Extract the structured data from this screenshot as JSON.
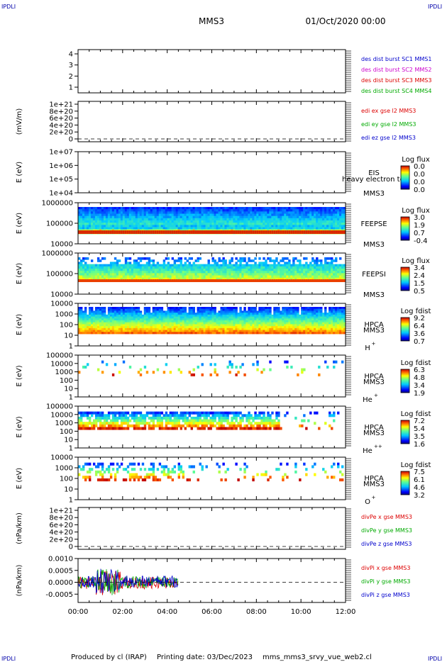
{
  "header": {
    "corner_left_top": "IPDLI",
    "corner_right_top": "IPDLI",
    "corner_left_bottom": "IPDLI",
    "corner_right_bottom": "IPDLI",
    "spacecraft": "MMS3",
    "datetime": "01/Oct/2020 00:00"
  },
  "footer": {
    "produced_by": "Produced by cl (IRAP)",
    "printing_date": "Printing date: 03/Dec/2023",
    "filename": "mms_mms3_srvy_vue_web2.cl"
  },
  "time_axis": {
    "ticks": [
      "00:00",
      "02:00",
      "04:00",
      "06:00",
      "08:00",
      "10:00",
      "12:00"
    ],
    "range_hours": [
      0,
      12
    ]
  },
  "chart_data": [
    {
      "id": "burst",
      "type": "line",
      "ylabel": "",
      "yticks": [
        "4",
        "3",
        "2",
        "1"
      ],
      "legend": [
        {
          "text": "des dist burst SC1 MMS1",
          "color": "#0000cc"
        },
        {
          "text": "des dist burst SC2 MMS2",
          "color": "#cc00cc"
        },
        {
          "text": "des dist burst SC3 MMS3",
          "color": "#dd0000"
        },
        {
          "text": "des dist burst SC4 MMS4",
          "color": "#00aa00"
        }
      ]
    },
    {
      "id": "edi",
      "type": "line",
      "ylabel": "(mV/m)",
      "yticks": [
        "1e+21",
        "8e+20",
        "6e+20",
        "4e+20",
        "2e+20",
        "0"
      ],
      "zero_line": true,
      "legend": [
        {
          "text": "edi ex gse l2 MMS3",
          "color": "#dd0000"
        },
        {
          "text": "edi ey gse l2 MMS3",
          "color": "#00aa00"
        },
        {
          "text": "edi ez gse l2 MMS3",
          "color": "#0000cc"
        }
      ]
    },
    {
      "id": "eis",
      "type": "heatmap",
      "ylabel": "E (eV)",
      "yticks": [
        "1e+07",
        "1e+06",
        "1e+05",
        "1e+04"
      ],
      "instrument": "EIS",
      "overlay_text": "heavy electron tc",
      "sc": "MMS3",
      "cbar_title": "Log flux",
      "cbar_ticks": [
        "0.0",
        "0.0",
        "0.0",
        "0.0"
      ]
    },
    {
      "id": "feepse",
      "type": "heatmap",
      "ylabel": "E (eV)",
      "yticks": [
        "1000000",
        "100000",
        "10000"
      ],
      "instrument": "FEEPSE",
      "sc": "MMS3",
      "cbar_title": "Log flux",
      "cbar_ticks": [
        "3.0",
        "1.9",
        "0.7",
        "-0.4"
      ]
    },
    {
      "id": "feepsi",
      "type": "heatmap",
      "ylabel": "E (eV)",
      "yticks": [
        "1000000",
        "100000",
        "10000"
      ],
      "instrument": "FEEPSI",
      "sc": "MMS3",
      "cbar_title": "Log flux",
      "cbar_ticks": [
        "3.4",
        "2.4",
        "1.5",
        "0.5"
      ]
    },
    {
      "id": "hpca_h",
      "type": "heatmap",
      "ylabel": "E (eV)",
      "yticks": [
        "10000",
        "1000",
        "100",
        "10",
        "1"
      ],
      "instrument": "HPCA",
      "sc": "MMS3",
      "species": "H",
      "species_sup": "+",
      "cbar_title": "Log fdist",
      "cbar_ticks": [
        "9.2",
        "6.4",
        "3.6",
        "0.7"
      ]
    },
    {
      "id": "hpca_he1",
      "type": "heatmap",
      "ylabel": "E (eV)",
      "yticks": [
        "100000",
        "10000",
        "1000",
        "100",
        "10",
        "1"
      ],
      "instrument": "HPCA",
      "sc": "MMS3",
      "species": "He",
      "species_sup": "+",
      "cbar_title": "Log fdist",
      "cbar_ticks": [
        "6.3",
        "4.8",
        "3.4",
        "1.9"
      ]
    },
    {
      "id": "hpca_he2",
      "type": "heatmap",
      "ylabel": "E (eV)",
      "yticks": [
        "100000",
        "10000",
        "1000",
        "100",
        "10",
        "1"
      ],
      "instrument": "HPCA",
      "sc": "MMS3",
      "species": "He",
      "species_sup": "++",
      "cbar_title": "Log fdist",
      "cbar_ticks": [
        "7.2",
        "5.4",
        "3.5",
        "1.6"
      ]
    },
    {
      "id": "hpca_o",
      "type": "heatmap",
      "ylabel": "E (eV)",
      "yticks": [
        "10000",
        "1000",
        "100",
        "10",
        "1"
      ],
      "instrument": "HPCA",
      "sc": "MMS3",
      "species": "O",
      "species_sup": "+",
      "cbar_title": "Log fdist",
      "cbar_ticks": [
        "7.5",
        "6.1",
        "4.6",
        "3.2"
      ]
    },
    {
      "id": "divpe",
      "type": "line",
      "ylabel": "(nPa/km)",
      "yticks": [
        "1e+21",
        "8e+20",
        "6e+20",
        "4e+20",
        "2e+20",
        "0"
      ],
      "zero_line": true,
      "legend": [
        {
          "text": "divPe x gse MMS3",
          "color": "#dd0000"
        },
        {
          "text": "divPe y gse MMS3",
          "color": "#00aa00"
        },
        {
          "text": "divPe z gse MMS3",
          "color": "#0000cc"
        }
      ]
    },
    {
      "id": "divpi",
      "type": "line",
      "ylabel": "(nPa/km)",
      "yticks": [
        "0.0010",
        "0.0005",
        "0.0000",
        "-0.0005"
      ],
      "ylim": [
        -0.00085,
        0.001
      ],
      "zero_line": true,
      "data_end_hours": 4.5,
      "legend": [
        {
          "text": "divPi x gse MMS3",
          "color": "#dd0000"
        },
        {
          "text": "divPi y gse MMS3",
          "color": "#00aa00"
        },
        {
          "text": "divPi z gse MMS3",
          "color": "#0000cc"
        }
      ]
    }
  ],
  "colors": {
    "blue_label": "#0000cc",
    "red_line": "#dd0000",
    "green_line": "#00aa00"
  }
}
